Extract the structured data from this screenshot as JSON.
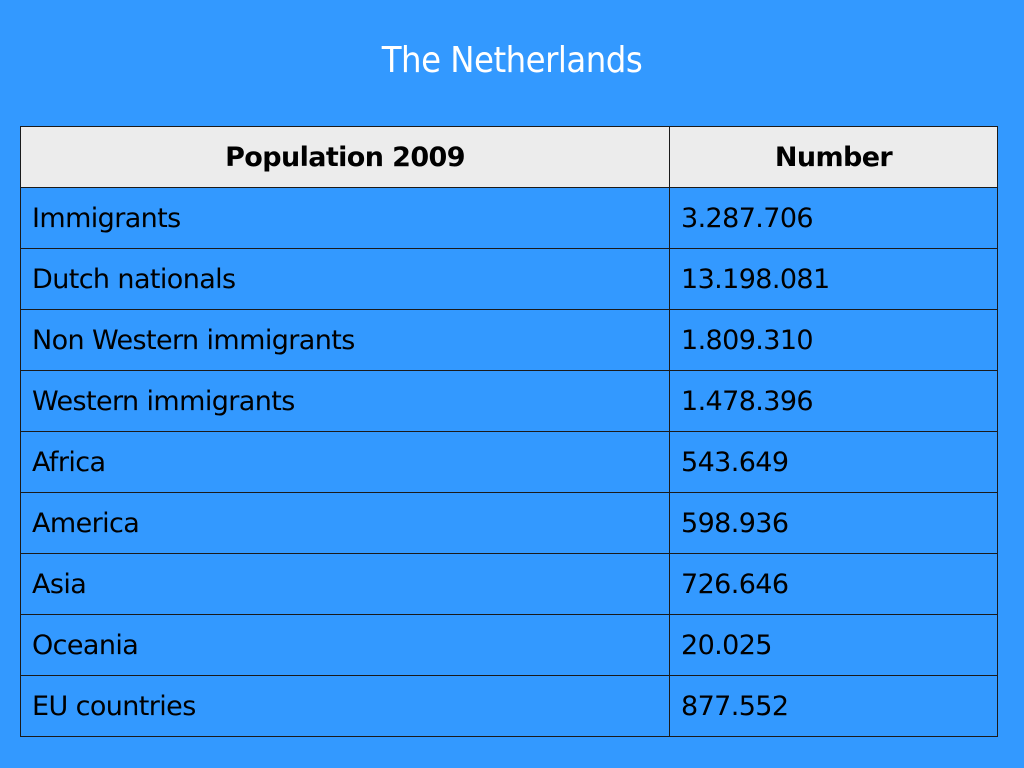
{
  "title": "The Netherlands",
  "table": {
    "headers": [
      "Population 2009",
      "Number"
    ],
    "rows": [
      [
        "Immigrants",
        "3.287.706"
      ],
      [
        "Dutch nationals",
        "13.198.081"
      ],
      [
        "Non Western immigrants",
        "1.809.310"
      ],
      [
        "Western immigrants",
        "1.478.396"
      ],
      [
        "Africa",
        "543.649"
      ],
      [
        "America",
        "598.936"
      ],
      [
        "Asia",
        "726.646"
      ],
      [
        "Oceania",
        "20.025"
      ],
      [
        "EU countries",
        "877.552"
      ]
    ]
  },
  "colors": {
    "background": "#3399ff",
    "header_background": "#ececec",
    "title_text": "#ffffff",
    "table_text": "#000000"
  }
}
